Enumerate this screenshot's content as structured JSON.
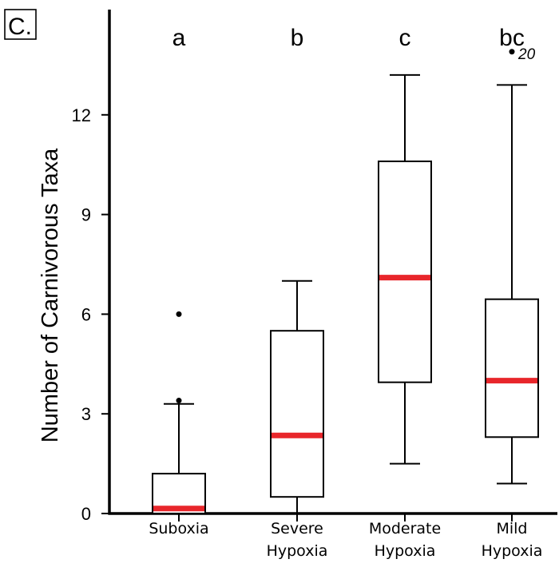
{
  "panel_label": "C.",
  "chart_data": {
    "type": "box",
    "ylabel": "Number of Carnivorous Taxa",
    "xlabel": "",
    "ylim": [
      0,
      15
    ],
    "yticks": [
      0,
      3,
      6,
      9,
      12
    ],
    "grid": false,
    "median_color": "#e8262b",
    "categories": [
      [
        "Suboxia"
      ],
      [
        "Severe",
        "Hypoxia"
      ],
      [
        "Moderate",
        "Hypoxia"
      ],
      [
        "Mild",
        "Hypoxia"
      ]
    ],
    "letters": [
      "a",
      "b",
      "c",
      "bc"
    ],
    "boxes": [
      {
        "whisker_low": 0,
        "q1": 0,
        "median": 0.15,
        "q3": 1.2,
        "whisker_high": 3.3,
        "outliers": [
          3.4,
          6.0
        ]
      },
      {
        "whisker_low": 0,
        "q1": 0.5,
        "median": 2.35,
        "q3": 5.5,
        "whisker_high": 7.0,
        "outliers": []
      },
      {
        "whisker_low": 1.5,
        "q1": 3.95,
        "median": 7.1,
        "q3": 10.6,
        "whisker_high": 13.2,
        "outliers": []
      },
      {
        "whisker_low": 0.9,
        "q1": 2.3,
        "median": 4.0,
        "q3": 6.45,
        "whisker_high": 12.9,
        "outliers": [
          13.9
        ]
      }
    ],
    "outlier_labels": [
      {
        "box": 3,
        "value": 13.9,
        "label": "20"
      }
    ]
  }
}
